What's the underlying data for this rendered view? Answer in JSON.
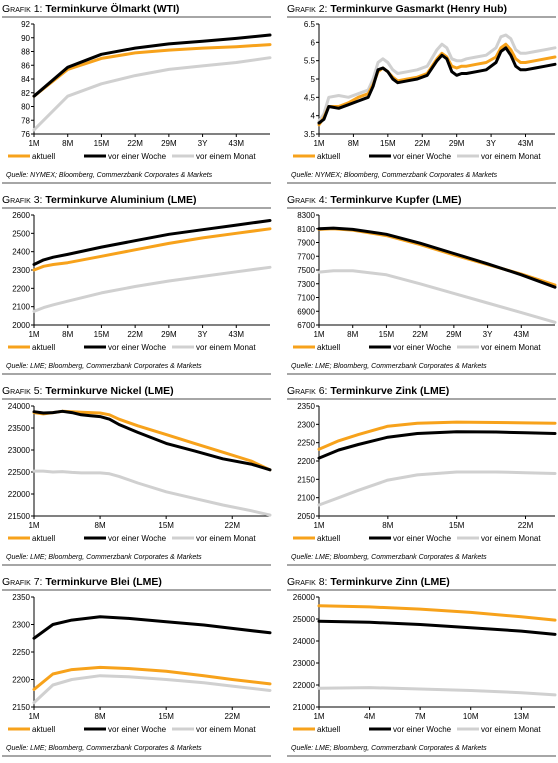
{
  "colors": {
    "aktuell": "#f7a21b",
    "vor_einer_woche": "#000000",
    "vor_einem_monat": "#d0d0d0",
    "rule": "#a6a6a6"
  },
  "panels": [
    {
      "label": "Grafik 1:",
      "title": "Terminkurve Ölmarkt (WTI)",
      "source": "Quelle: NYMEX; Bloomberg, Commerzbank Corporates & Markets",
      "chart_data": {
        "type": "line",
        "x": [
          1,
          8,
          15,
          22,
          29,
          36,
          43,
          50
        ],
        "xticks": [
          {
            "v": 1,
            "label": "1M"
          },
          {
            "v": 8,
            "label": "8M"
          },
          {
            "v": 15,
            "label": "15M"
          },
          {
            "v": 22,
            "label": "22M"
          },
          {
            "v": 29,
            "label": "29M"
          },
          {
            "v": 36,
            "label": "3Y"
          },
          {
            "v": 43,
            "label": "43M"
          }
        ],
        "xlim": [
          1,
          50
        ],
        "ylim": [
          76,
          92
        ],
        "yticks": [
          76,
          78,
          80,
          82,
          84,
          86,
          88,
          90,
          92
        ],
        "series": [
          {
            "name": "aktuell",
            "key": "aktuell",
            "values": [
              81.5,
              85.4,
              87.0,
              87.8,
              88.2,
              88.5,
              88.7,
              89.0
            ]
          },
          {
            "name": "vor einer Woche",
            "key": "vor_einer_woche",
            "values": [
              81.5,
              85.7,
              87.6,
              88.5,
              89.1,
              89.5,
              89.9,
              90.4
            ]
          },
          {
            "name": "vor einem Monat",
            "key": "vor_einem_monat",
            "values": [
              76.6,
              81.5,
              83.3,
              84.5,
              85.4,
              85.9,
              86.4,
              87.1
            ]
          }
        ],
        "legend": "bottom"
      }
    },
    {
      "label": "Grafik 2:",
      "title": "Terminkurve Gasmarkt (Henry Hub)",
      "source": "Quelle: NYMEX; Bloomberg, Commerzbank Corporates & Markets",
      "chart_data": {
        "type": "line",
        "x": [
          1,
          2,
          3,
          5,
          7,
          9,
          11,
          12,
          13,
          14,
          15,
          16,
          17,
          19,
          21,
          23,
          25,
          26,
          27,
          28,
          29,
          30,
          31,
          33,
          35,
          37,
          38,
          39,
          40,
          41,
          42,
          43,
          45,
          47,
          49
        ],
        "xticks": [
          {
            "v": 1,
            "label": "1M"
          },
          {
            "v": 8,
            "label": "8M"
          },
          {
            "v": 15,
            "label": "15M"
          },
          {
            "v": 22,
            "label": "22M"
          },
          {
            "v": 29,
            "label": "29M"
          },
          {
            "v": 36,
            "label": "3Y"
          },
          {
            "v": 43,
            "label": "43M"
          }
        ],
        "xlim": [
          1,
          49
        ],
        "ylim": [
          3.5,
          6.5
        ],
        "yticks": [
          3.5,
          4.0,
          4.5,
          5.0,
          5.5,
          6.0,
          6.5
        ],
        "series": [
          {
            "name": "aktuell",
            "key": "aktuell",
            "values": [
              3.75,
              3.95,
              4.25,
              4.25,
              4.35,
              4.5,
              4.6,
              4.85,
              5.2,
              5.3,
              5.2,
              5.05,
              4.95,
              5.0,
              5.05,
              5.15,
              5.55,
              5.7,
              5.6,
              5.35,
              5.3,
              5.35,
              5.35,
              5.4,
              5.45,
              5.6,
              5.85,
              5.95,
              5.8,
              5.55,
              5.45,
              5.45,
              5.5,
              5.55,
              5.6
            ]
          },
          {
            "name": "vor einer Woche",
            "key": "vor_einer_woche",
            "values": [
              3.8,
              3.9,
              4.25,
              4.2,
              4.3,
              4.4,
              4.5,
              4.8,
              5.25,
              5.3,
              5.2,
              5.0,
              4.9,
              4.95,
              5.0,
              5.1,
              5.5,
              5.65,
              5.55,
              5.2,
              5.1,
              5.15,
              5.15,
              5.2,
              5.25,
              5.45,
              5.75,
              5.85,
              5.65,
              5.35,
              5.25,
              5.25,
              5.3,
              5.35,
              5.4
            ]
          },
          {
            "name": "vor einem Monat",
            "key": "vor_einem_monat",
            "values": [
              3.85,
              4.05,
              4.5,
              4.55,
              4.5,
              4.6,
              4.7,
              5.0,
              5.45,
              5.55,
              5.45,
              5.25,
              5.15,
              5.2,
              5.25,
              5.35,
              5.8,
              5.95,
              5.85,
              5.55,
              5.5,
              5.5,
              5.55,
              5.6,
              5.65,
              5.85,
              6.15,
              6.2,
              6.1,
              5.8,
              5.7,
              5.7,
              5.75,
              5.8,
              5.85
            ]
          }
        ],
        "legend": "bottom"
      }
    },
    {
      "label": "Grafik 3:",
      "title": "Terminkurve Aluminium (LME)",
      "source": "Quelle: LME; Bloomberg, Commerzbank Corporates & Markets",
      "chart_data": {
        "type": "line",
        "x": [
          1,
          3,
          5,
          8,
          15,
          22,
          29,
          36,
          43,
          50
        ],
        "xticks": [
          {
            "v": 1,
            "label": "1M"
          },
          {
            "v": 8,
            "label": "8M"
          },
          {
            "v": 15,
            "label": "15M"
          },
          {
            "v": 22,
            "label": "22M"
          },
          {
            "v": 29,
            "label": "29M"
          },
          {
            "v": 36,
            "label": "3Y"
          },
          {
            "v": 43,
            "label": "43M"
          }
        ],
        "xlim": [
          1,
          50
        ],
        "ylim": [
          2000,
          2600
        ],
        "yticks": [
          2000,
          2100,
          2200,
          2300,
          2400,
          2500,
          2600
        ],
        "series": [
          {
            "name": "aktuell",
            "key": "aktuell",
            "values": [
              2300,
              2320,
              2330,
              2340,
              2375,
              2410,
              2445,
              2475,
              2500,
              2525
            ]
          },
          {
            "name": "vor einer Woche",
            "key": "vor_einer_woche",
            "values": [
              2330,
              2355,
              2370,
              2385,
              2425,
              2460,
              2495,
              2520,
              2545,
              2570
            ]
          },
          {
            "name": "vor einem Monat",
            "key": "vor_einem_monat",
            "values": [
              2075,
              2095,
              2110,
              2130,
              2175,
              2210,
              2240,
              2265,
              2290,
              2315
            ]
          }
        ],
        "legend": "bottom"
      }
    },
    {
      "label": "Grafik 4:",
      "title": "Terminkurve Kupfer (LME)",
      "source": "Quelle: LME; Bloomberg, Commerzbank Corporates & Markets",
      "chart_data": {
        "type": "line",
        "x": [
          1,
          4,
          8,
          15,
          22,
          29,
          36,
          43,
          50
        ],
        "xticks": [
          {
            "v": 1,
            "label": "1M"
          },
          {
            "v": 8,
            "label": "8M"
          },
          {
            "v": 15,
            "label": "15M"
          },
          {
            "v": 22,
            "label": "22M"
          },
          {
            "v": 29,
            "label": "29M"
          },
          {
            "v": 36,
            "label": "3Y"
          },
          {
            "v": 43,
            "label": "43M"
          }
        ],
        "xlim": [
          1,
          50
        ],
        "ylim": [
          6700,
          8300
        ],
        "yticks": [
          6700,
          6900,
          7100,
          7300,
          7500,
          7700,
          7900,
          8100,
          8300
        ],
        "series": [
          {
            "name": "aktuell",
            "key": "aktuell",
            "values": [
              8090,
              8100,
              8080,
              8000,
              7870,
              7720,
              7580,
              7440,
              7280
            ]
          },
          {
            "name": "vor einer Woche",
            "key": "vor_einer_woche",
            "values": [
              8100,
              8110,
              8090,
              8020,
              7890,
              7740,
              7590,
              7430,
              7250
            ]
          },
          {
            "name": "vor einem Monat",
            "key": "vor_einem_monat",
            "values": [
              7470,
              7490,
              7490,
              7430,
              7300,
              7160,
              7020,
              6880,
              6740
            ]
          }
        ],
        "legend": "bottom"
      }
    },
    {
      "label": "Grafik 5:",
      "title": "Terminkurve Nickel (LME)",
      "source": "Quelle: LME; Bloomberg, Commerzbank Corporates & Markets",
      "chart_data": {
        "type": "line",
        "x": [
          1,
          2,
          3,
          4,
          5,
          6,
          7,
          8,
          9,
          10,
          12,
          15,
          18,
          21,
          24,
          26
        ],
        "xticks": [
          {
            "v": 1,
            "label": "1M"
          },
          {
            "v": 8,
            "label": "8M"
          },
          {
            "v": 15,
            "label": "15M"
          },
          {
            "v": 22,
            "label": "22M"
          }
        ],
        "xlim": [
          1,
          26
        ],
        "ylim": [
          21500,
          24000
        ],
        "yticks": [
          21500,
          22000,
          22500,
          23000,
          23500,
          24000
        ],
        "series": [
          {
            "name": "aktuell",
            "key": "aktuell",
            "values": [
              23850,
              23820,
              23850,
              23880,
              23870,
              23860,
              23850,
              23840,
              23800,
              23700,
              23550,
              23350,
              23150,
              22950,
              22750,
              22550
            ]
          },
          {
            "name": "vor einer Woche",
            "key": "vor_einer_woche",
            "values": [
              23870,
              23840,
              23850,
              23880,
              23850,
              23800,
              23780,
              23760,
              23700,
              23580,
              23400,
              23150,
              22980,
              22800,
              22680,
              22550
            ]
          },
          {
            "name": "vor einem Monat",
            "key": "vor_einem_monat",
            "values": [
              22520,
              22520,
              22500,
              22510,
              22490,
              22480,
              22480,
              22480,
              22460,
              22400,
              22250,
              22050,
              21900,
              21750,
              21620,
              21520
            ]
          }
        ],
        "legend": "bottom"
      }
    },
    {
      "label": "Grafik 6:",
      "title": "Terminkurve Zink (LME)",
      "source": "Quelle: LME; Bloomberg, Commerzbank Corporates & Markets",
      "chart_data": {
        "type": "line",
        "x": [
          1,
          3,
          5,
          8,
          11,
          15,
          19,
          22,
          25
        ],
        "xticks": [
          {
            "v": 1,
            "label": "1M"
          },
          {
            "v": 8,
            "label": "8M"
          },
          {
            "v": 15,
            "label": "15M"
          },
          {
            "v": 22,
            "label": "22M"
          }
        ],
        "xlim": [
          1,
          25
        ],
        "ylim": [
          2050,
          2350
        ],
        "yticks": [
          2050,
          2100,
          2150,
          2200,
          2250,
          2300,
          2350
        ],
        "series": [
          {
            "name": "aktuell",
            "key": "aktuell",
            "values": [
              2232,
              2255,
              2272,
              2295,
              2303,
              2306,
              2305,
              2304,
              2303
            ]
          },
          {
            "name": "vor einer Woche",
            "key": "vor_einer_woche",
            "values": [
              2208,
              2230,
              2245,
              2265,
              2275,
              2280,
              2279,
              2277,
              2275
            ]
          },
          {
            "name": "vor einem Monat",
            "key": "vor_einem_monat",
            "values": [
              2080,
              2100,
              2120,
              2148,
              2162,
              2170,
              2170,
              2168,
              2166
            ]
          }
        ],
        "legend": "bottom"
      }
    },
    {
      "label": "Grafik 7:",
      "title": "Terminkurve Blei (LME)",
      "source": "Quelle: LME; Bloomberg, Commerzbank Corporates & Markets",
      "chart_data": {
        "type": "line",
        "x": [
          1,
          3,
          5,
          8,
          11,
          15,
          19,
          22,
          26
        ],
        "xticks": [
          {
            "v": 1,
            "label": "1M"
          },
          {
            "v": 8,
            "label": "8M"
          },
          {
            "v": 15,
            "label": "15M"
          },
          {
            "v": 22,
            "label": "22M"
          }
        ],
        "xlim": [
          1,
          26
        ],
        "ylim": [
          2150,
          2350
        ],
        "yticks": [
          2150,
          2200,
          2250,
          2300,
          2350
        ],
        "series": [
          {
            "name": "aktuell",
            "key": "aktuell",
            "values": [
              2182,
              2210,
              2218,
              2222,
              2220,
              2215,
              2207,
              2200,
              2192
            ]
          },
          {
            "name": "vor einer Woche",
            "key": "vor_einer_woche",
            "values": [
              2275,
              2300,
              2308,
              2314,
              2311,
              2305,
              2299,
              2293,
              2285
            ]
          },
          {
            "name": "vor einem Monat",
            "key": "vor_einem_monat",
            "values": [
              2158,
              2190,
              2200,
              2207,
              2205,
              2200,
              2194,
              2188,
              2180
            ]
          }
        ],
        "legend": "bottom"
      }
    },
    {
      "label": "Grafik 8:",
      "title": "Terminkurve Zinn (LME)",
      "source": "Quelle: LME; Bloomberg, Commerzbank Corporates & Markets",
      "chart_data": {
        "type": "line",
        "x": [
          1,
          4,
          7,
          10,
          13,
          15
        ],
        "xticks": [
          {
            "v": 1,
            "label": "1M"
          },
          {
            "v": 4,
            "label": "4M"
          },
          {
            "v": 7,
            "label": "7M"
          },
          {
            "v": 10,
            "label": "10M"
          },
          {
            "v": 13,
            "label": "13M"
          }
        ],
        "xlim": [
          1,
          15
        ],
        "ylim": [
          21000,
          26000
        ],
        "yticks": [
          21000,
          22000,
          23000,
          24000,
          25000,
          26000
        ],
        "series": [
          {
            "name": "aktuell",
            "key": "aktuell",
            "values": [
              25600,
              25550,
              25450,
              25300,
              25100,
              24950
            ]
          },
          {
            "name": "vor einer Woche",
            "key": "vor_einer_woche",
            "values": [
              24900,
              24850,
              24750,
              24600,
              24450,
              24300
            ]
          },
          {
            "name": "vor einem Monat",
            "key": "vor_einem_monat",
            "values": [
              21850,
              21880,
              21820,
              21750,
              21650,
              21550
            ]
          }
        ],
        "legend": "bottom"
      }
    }
  ]
}
